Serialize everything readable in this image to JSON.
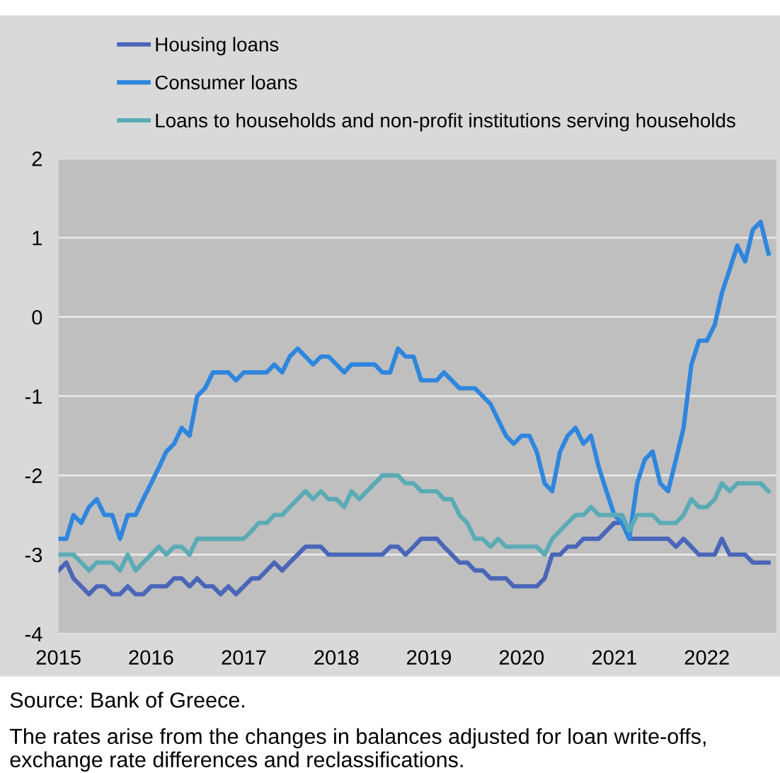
{
  "chart_data": {
    "type": "line",
    "x": [
      "2015-01",
      "2015-02",
      "2015-03",
      "2015-04",
      "2015-05",
      "2015-06",
      "2015-07",
      "2015-08",
      "2015-09",
      "2015-10",
      "2015-11",
      "2015-12",
      "2016-01",
      "2016-02",
      "2016-03",
      "2016-04",
      "2016-05",
      "2016-06",
      "2016-07",
      "2016-08",
      "2016-09",
      "2016-10",
      "2016-11",
      "2016-12",
      "2017-01",
      "2017-02",
      "2017-03",
      "2017-04",
      "2017-05",
      "2017-06",
      "2017-07",
      "2017-08",
      "2017-09",
      "2017-10",
      "2017-11",
      "2017-12",
      "2018-01",
      "2018-02",
      "2018-03",
      "2018-04",
      "2018-05",
      "2018-06",
      "2018-07",
      "2018-08",
      "2018-09",
      "2018-10",
      "2018-11",
      "2018-12",
      "2019-01",
      "2019-02",
      "2019-03",
      "2019-04",
      "2019-05",
      "2019-06",
      "2019-07",
      "2019-08",
      "2019-09",
      "2019-10",
      "2019-11",
      "2019-12",
      "2020-01",
      "2020-02",
      "2020-03",
      "2020-04",
      "2020-05",
      "2020-06",
      "2020-07",
      "2020-08",
      "2020-09",
      "2020-10",
      "2020-11",
      "2020-12",
      "2021-01",
      "2021-02",
      "2021-03",
      "2021-04",
      "2021-05",
      "2021-06",
      "2021-07",
      "2021-08",
      "2021-09",
      "2021-10",
      "2021-11",
      "2021-12",
      "2022-01",
      "2022-02",
      "2022-03",
      "2022-04",
      "2022-05",
      "2022-06",
      "2022-07",
      "2022-08",
      "2022-09"
    ],
    "series": [
      {
        "name": "Housing loans",
        "color": "#4a66b8",
        "values": [
          -3.2,
          -3.1,
          -3.3,
          -3.4,
          -3.5,
          -3.4,
          -3.4,
          -3.5,
          -3.5,
          -3.4,
          -3.5,
          -3.5,
          -3.4,
          -3.4,
          -3.4,
          -3.3,
          -3.3,
          -3.4,
          -3.3,
          -3.4,
          -3.4,
          -3.5,
          -3.4,
          -3.5,
          -3.4,
          -3.3,
          -3.3,
          -3.2,
          -3.1,
          -3.2,
          -3.1,
          -3.0,
          -2.9,
          -2.9,
          -2.9,
          -3.0,
          -3.0,
          -3.0,
          -3.0,
          -3.0,
          -3.0,
          -3.0,
          -3.0,
          -2.9,
          -2.9,
          -3.0,
          -2.9,
          -2.8,
          -2.8,
          -2.8,
          -2.9,
          -3.0,
          -3.1,
          -3.1,
          -3.2,
          -3.2,
          -3.3,
          -3.3,
          -3.3,
          -3.4,
          -3.4,
          -3.4,
          -3.4,
          -3.3,
          -3.0,
          -3.0,
          -2.9,
          -2.9,
          -2.8,
          -2.8,
          -2.8,
          -2.7,
          -2.6,
          -2.6,
          -2.8,
          -2.8,
          -2.8,
          -2.8,
          -2.8,
          -2.8,
          -2.9,
          -2.8,
          -2.9,
          -3.0,
          -3.0,
          -3.0,
          -2.8,
          -3.0,
          -3.0,
          -3.0,
          -3.1,
          -3.1,
          -3.1
        ]
      },
      {
        "name": "Consumer loans",
        "color": "#2e86de",
        "values": [
          -2.8,
          -2.8,
          -2.5,
          -2.6,
          -2.4,
          -2.3,
          -2.5,
          -2.5,
          -2.8,
          -2.5,
          -2.5,
          -2.3,
          -2.1,
          -1.9,
          -1.7,
          -1.6,
          -1.4,
          -1.5,
          -1.0,
          -0.9,
          -0.7,
          -0.7,
          -0.7,
          -0.8,
          -0.7,
          -0.7,
          -0.7,
          -0.7,
          -0.6,
          -0.7,
          -0.5,
          -0.4,
          -0.5,
          -0.6,
          -0.5,
          -0.5,
          -0.6,
          -0.7,
          -0.6,
          -0.6,
          -0.6,
          -0.6,
          -0.7,
          -0.7,
          -0.4,
          -0.5,
          -0.5,
          -0.8,
          -0.8,
          -0.8,
          -0.7,
          -0.8,
          -0.9,
          -0.9,
          -0.9,
          -1.0,
          -1.1,
          -1.3,
          -1.5,
          -1.6,
          -1.5,
          -1.5,
          -1.7,
          -2.1,
          -2.2,
          -1.7,
          -1.5,
          -1.4,
          -1.6,
          -1.5,
          -1.9,
          -2.2,
          -2.5,
          -2.6,
          -2.8,
          -2.1,
          -1.8,
          -1.7,
          -2.1,
          -2.2,
          -1.8,
          -1.4,
          -0.6,
          -0.3,
          -0.3,
          -0.1,
          0.3,
          0.6,
          0.9,
          0.7,
          1.1,
          1.2,
          0.8
        ]
      },
      {
        "name": "Loans to households and non-profit institutions serving households",
        "color": "#5aabb5",
        "values": [
          -3.0,
          -3.0,
          -3.0,
          -3.1,
          -3.2,
          -3.1,
          -3.1,
          -3.1,
          -3.2,
          -3.0,
          -3.2,
          -3.1,
          -3.0,
          -2.9,
          -3.0,
          -2.9,
          -2.9,
          -3.0,
          -2.8,
          -2.8,
          -2.8,
          -2.8,
          -2.8,
          -2.8,
          -2.8,
          -2.7,
          -2.6,
          -2.6,
          -2.5,
          -2.5,
          -2.4,
          -2.3,
          -2.2,
          -2.3,
          -2.2,
          -2.3,
          -2.3,
          -2.4,
          -2.2,
          -2.3,
          -2.2,
          -2.1,
          -2.0,
          -2.0,
          -2.0,
          -2.1,
          -2.1,
          -2.2,
          -2.2,
          -2.2,
          -2.3,
          -2.3,
          -2.5,
          -2.6,
          -2.8,
          -2.8,
          -2.9,
          -2.8,
          -2.9,
          -2.9,
          -2.9,
          -2.9,
          -2.9,
          -3.0,
          -2.8,
          -2.7,
          -2.6,
          -2.5,
          -2.5,
          -2.4,
          -2.5,
          -2.5,
          -2.5,
          -2.5,
          -2.7,
          -2.5,
          -2.5,
          -2.5,
          -2.6,
          -2.6,
          -2.6,
          -2.5,
          -2.3,
          -2.4,
          -2.4,
          -2.3,
          -2.1,
          -2.2,
          -2.1,
          -2.1,
          -2.1,
          -2.1,
          -2.2
        ]
      }
    ],
    "xlim": [
      "2015-01",
      "2022-10"
    ],
    "xticks": [
      {
        "value": "2015-01",
        "label": "2015"
      },
      {
        "value": "2016-01",
        "label": "2016"
      },
      {
        "value": "2017-01",
        "label": "2017"
      },
      {
        "value": "2018-01",
        "label": "2018"
      },
      {
        "value": "2019-01",
        "label": "2019"
      },
      {
        "value": "2020-01",
        "label": "2020"
      },
      {
        "value": "2021-01",
        "label": "2021"
      },
      {
        "value": "2022-01",
        "label": "2022"
      }
    ],
    "ylim": [
      -4,
      2
    ],
    "yticks": [
      -4,
      -3,
      -2,
      -1,
      0,
      1,
      2
    ],
    "grid": "y",
    "legend": "top left",
    "annotations": [
      "Source: Bank of Greece.",
      "The rates arise from the changes in balances adjusted for loan write-offs, exchange rate differences and reclassifications."
    ]
  }
}
